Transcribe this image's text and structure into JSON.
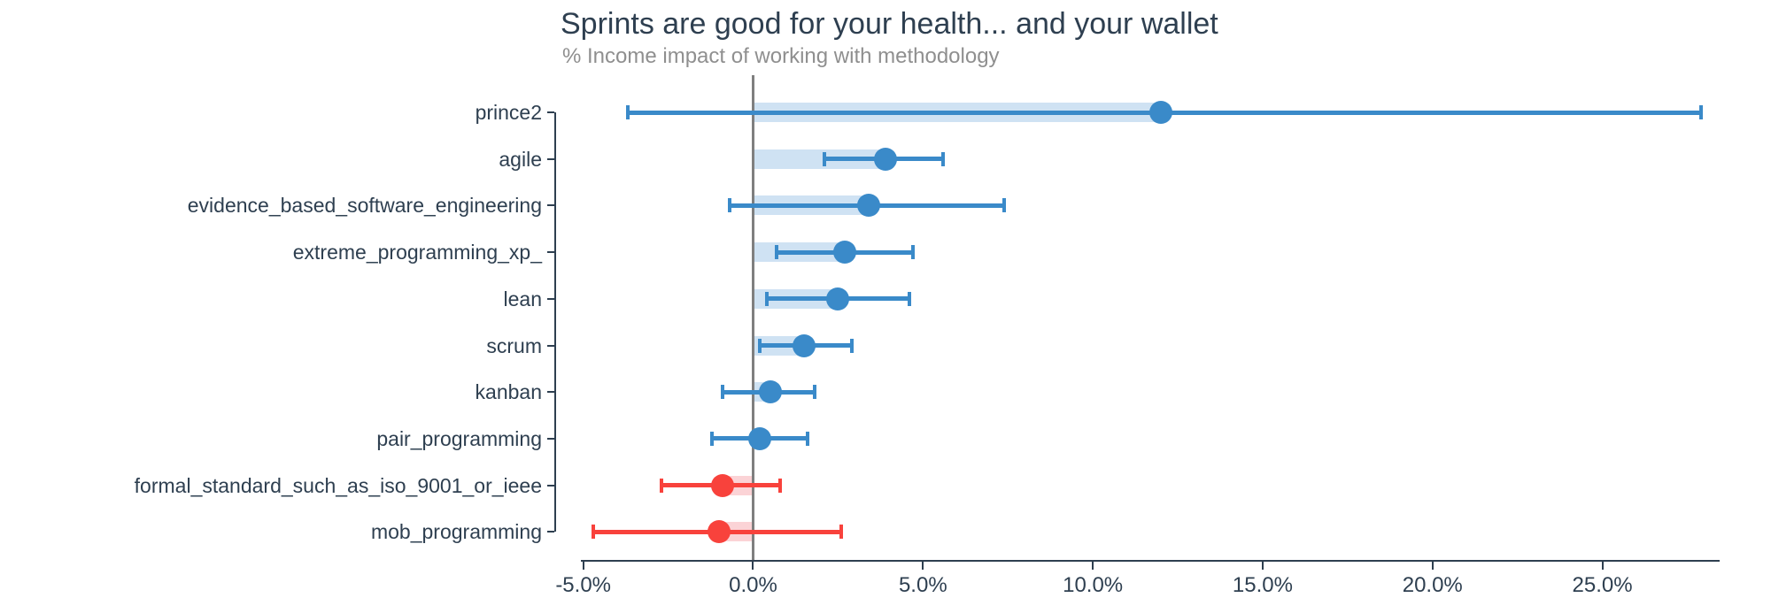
{
  "chart_data": {
    "type": "scatter",
    "variant": "horizontal_dot_plot_with_error_bars_and_value_bars",
    "title": "Sprints are good for your health... and your wallet",
    "subtitle": "% Income impact of working with methodology",
    "xlabel": "",
    "ylabel": "",
    "grid": "zero-line-only",
    "legend": "none",
    "xlim": [
      -5.07,
      28.4
    ],
    "x_ticks": [
      {
        "value": -5,
        "label": "-5.0%"
      },
      {
        "value": 0,
        "label": "0.0%"
      },
      {
        "value": 5,
        "label": "5.0%"
      },
      {
        "value": 10,
        "label": "10.0%"
      },
      {
        "value": 15,
        "label": "15.0%"
      },
      {
        "value": 20,
        "label": "20.0%"
      },
      {
        "value": 25,
        "label": "25.0%"
      }
    ],
    "zero_reference_line": 0,
    "rows": [
      {
        "category": "prince2",
        "mean": 12.0,
        "ci_low": -3.7,
        "ci_high": 27.9,
        "color": "positive"
      },
      {
        "category": "agile",
        "mean": 3.9,
        "ci_low": 2.1,
        "ci_high": 5.6,
        "color": "positive"
      },
      {
        "category": "evidence_based_software_engineering",
        "mean": 3.4,
        "ci_low": -0.7,
        "ci_high": 7.4,
        "color": "positive"
      },
      {
        "category": "extreme_programming_xp_",
        "mean": 2.7,
        "ci_low": 0.7,
        "ci_high": 4.7,
        "color": "positive"
      },
      {
        "category": "lean",
        "mean": 2.5,
        "ci_low": 0.4,
        "ci_high": 4.6,
        "color": "positive"
      },
      {
        "category": "scrum",
        "mean": 1.5,
        "ci_low": 0.2,
        "ci_high": 2.9,
        "color": "positive"
      },
      {
        "category": "kanban",
        "mean": 0.5,
        "ci_low": -0.9,
        "ci_high": 1.8,
        "color": "positive"
      },
      {
        "category": "pair_programming",
        "mean": 0.2,
        "ci_low": -1.2,
        "ci_high": 1.6,
        "color": "positive"
      },
      {
        "category": "formal_standard_such_as_iso_9001_or_ieee",
        "mean": -0.9,
        "ci_low": -2.7,
        "ci_high": 0.8,
        "color": "negative"
      },
      {
        "category": "mob_programming",
        "mean": -1.0,
        "ci_low": -4.7,
        "ci_high": 2.6,
        "color": "negative"
      }
    ],
    "colors": {
      "positive": "#3a8ac9",
      "positive_fill": "#cfe2f3",
      "negative": "#f8423c",
      "negative_fill": "#fbd3d6",
      "text": "#2e3f50",
      "subtitle_text": "#8f8f8f",
      "zero_line": "#7f7f7f",
      "axis": "#2e3f50",
      "background": "#ffffff"
    }
  }
}
